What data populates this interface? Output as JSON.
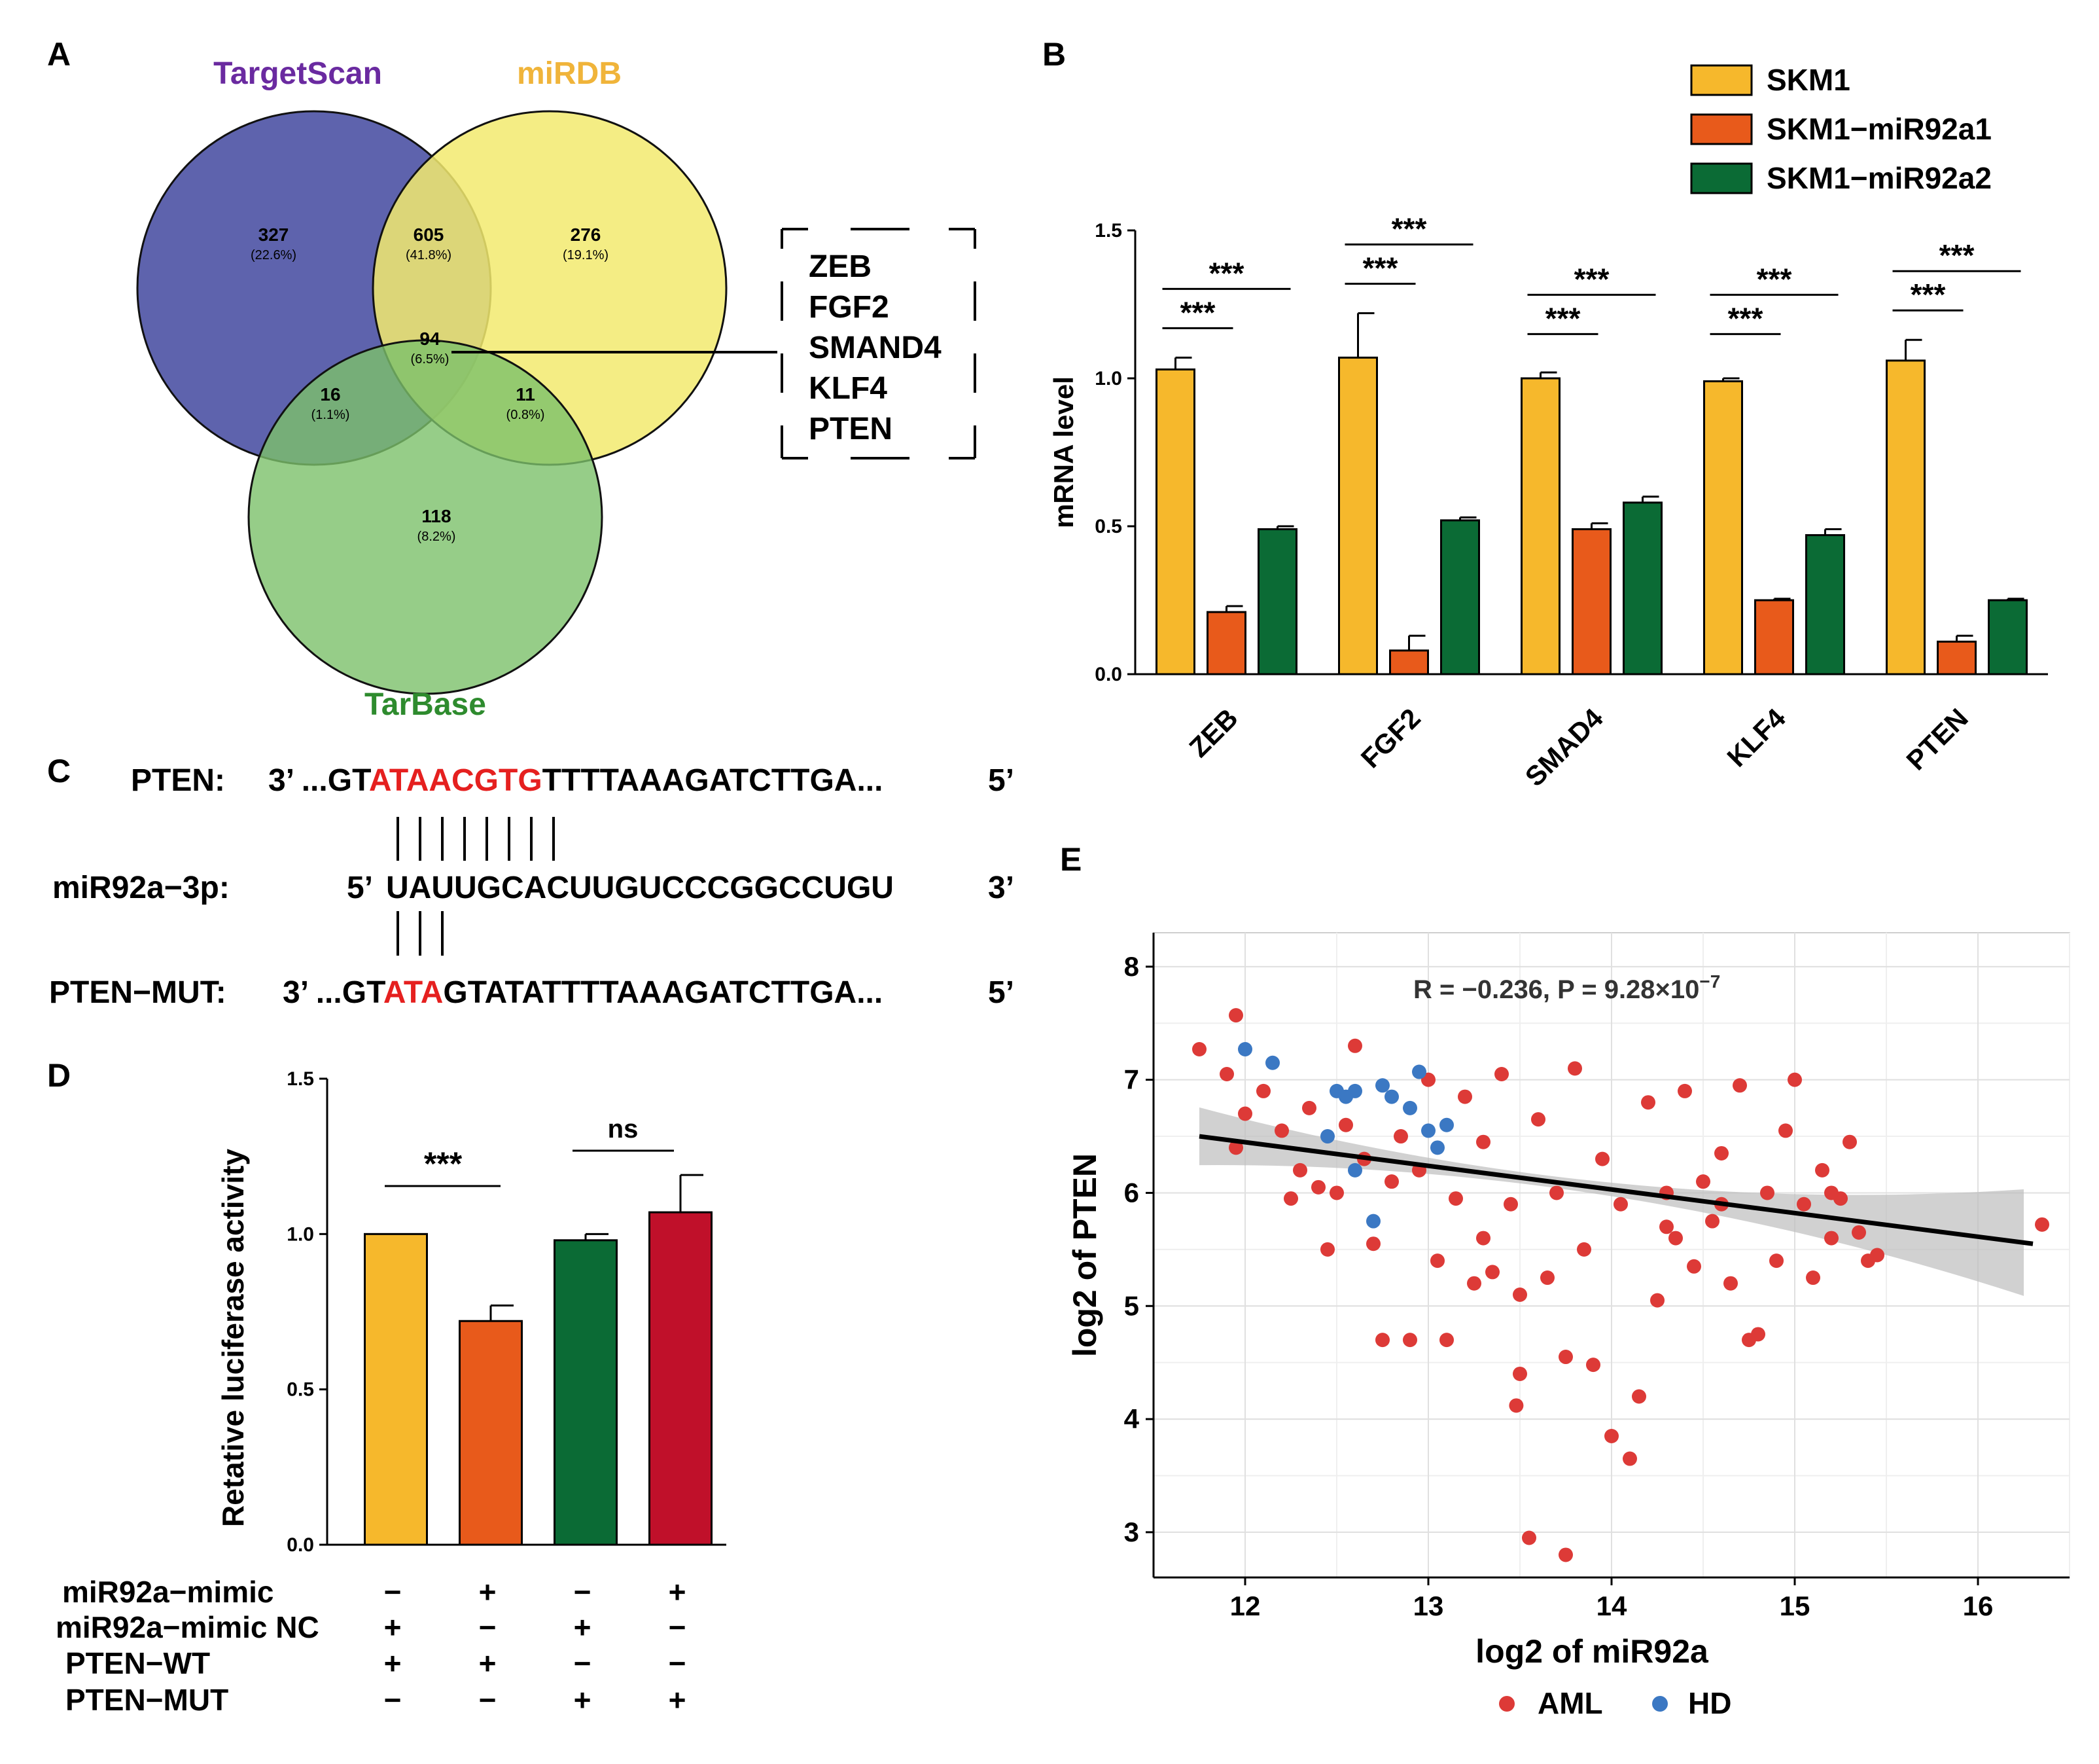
{
  "panels": {
    "A": "A",
    "B": "B",
    "C": "C",
    "D": "D",
    "E": "E"
  },
  "venn": {
    "sets": [
      "TargetScan",
      "miRDB",
      "TarBase"
    ],
    "regions": [
      {
        "count": "327",
        "pct": "(22.6%)"
      },
      {
        "count": "605",
        "pct": "(41.8%)"
      },
      {
        "count": "276",
        "pct": "(19.1%)"
      },
      {
        "count": "94",
        "pct": "(6.5%)"
      },
      {
        "count": "16",
        "pct": "(1.1%)"
      },
      {
        "count": "11",
        "pct": "(0.8%)"
      },
      {
        "count": "118",
        "pct": "(8.2%)"
      }
    ],
    "genes": [
      "ZEB",
      "FGF2",
      "SMAND4",
      "KLF4",
      "PTEN"
    ],
    "colors": {
      "TargetScan": "#5e63ad",
      "miRDB": "#f2ea6e",
      "TarBase": "#7cc16a",
      "TargetScanLabel": "#6a2aa0",
      "miRDBLabel": "#f0b43a",
      "TarBaseLabel": "#2e8b2e"
    }
  },
  "chart_data": [
    {
      "id": "B",
      "type": "bar",
      "ylabel": "mRNA level",
      "ylim": [
        0,
        1.5
      ],
      "yticks": [
        "0.0",
        "0.5",
        "1.0",
        "1.5"
      ],
      "categories": [
        "ZEB",
        "FGF2",
        "SMAD4",
        "KLF4",
        "PTEN"
      ],
      "series": [
        {
          "name": "SKM1",
          "color": "#f6b82c",
          "values": [
            1.03,
            1.07,
            1.0,
            0.99,
            1.06
          ],
          "errors": [
            0.04,
            0.15,
            0.02,
            0.01,
            0.07
          ]
        },
        {
          "name": "SKM1−miR92a1",
          "color": "#e85a1b",
          "values": [
            0.21,
            0.08,
            0.49,
            0.25,
            0.11
          ],
          "errors": [
            0.02,
            0.05,
            0.02,
            0.005,
            0.02
          ]
        },
        {
          "name": "SKM1−miR92a2",
          "color": "#0b6b35",
          "values": [
            0.49,
            0.52,
            0.58,
            0.47,
            0.25
          ],
          "errors": [
            0.01,
            0.01,
            0.02,
            0.02,
            0.005
          ]
        }
      ],
      "significance": [
        "***",
        "***",
        "***",
        "***",
        "***",
        "***",
        "***",
        "***",
        "***",
        "***"
      ]
    },
    {
      "id": "D",
      "type": "bar",
      "ylabel": "Retative luciferase activity",
      "ylim": [
        0,
        1.5
      ],
      "yticks": [
        "0.0",
        "0.5",
        "1.0",
        "1.5"
      ],
      "colors": [
        "#f6b82c",
        "#e85a1b",
        "#0b6b35",
        "#c0102a"
      ],
      "values": [
        1.0,
        0.72,
        0.98,
        1.07
      ],
      "errors": [
        0.0,
        0.05,
        0.02,
        0.12
      ],
      "significance": [
        "***",
        "ns"
      ],
      "conditions": [
        {
          "label": "miR92a−mimic",
          "signs": [
            "−",
            "+",
            "−",
            "+"
          ]
        },
        {
          "label": "miR92a−mimic NC",
          "signs": [
            "+",
            "−",
            "+",
            "−"
          ]
        },
        {
          "label": "PTEN−WT",
          "signs": [
            "+",
            "+",
            "−",
            "−"
          ]
        },
        {
          "label": "PTEN−MUT",
          "signs": [
            "−",
            "−",
            "+",
            "+"
          ]
        }
      ]
    },
    {
      "id": "E",
      "type": "scatter",
      "xlabel": "log2 of miR92a",
      "ylabel": "log2 of PTEN",
      "xlim": [
        11.5,
        16.5
      ],
      "ylim": [
        2.6,
        8.3
      ],
      "xticks": [
        "12",
        "13",
        "14",
        "15",
        "16"
      ],
      "yticks": [
        "3",
        "4",
        "5",
        "6",
        "7",
        "8"
      ],
      "annotation": "R = −0.236, P = 9.28×10",
      "annotation_exp": "−7",
      "regression": {
        "x": [
          11.75,
          16.3
        ],
        "y": [
          6.5,
          5.55
        ]
      },
      "legend": [
        "AML",
        "HD"
      ],
      "colors": {
        "AML": "#dd3a37",
        "HD": "#3b78c3"
      },
      "HD": [
        [
          12.0,
          7.27
        ],
        [
          12.15,
          7.15
        ],
        [
          12.45,
          6.5
        ],
        [
          12.5,
          6.9
        ],
        [
          12.55,
          6.85
        ],
        [
          12.6,
          6.9
        ],
        [
          12.6,
          6.2
        ],
        [
          12.7,
          5.75
        ],
        [
          12.8,
          6.85
        ],
        [
          12.9,
          6.75
        ],
        [
          12.95,
          7.07
        ],
        [
          13.0,
          6.55
        ],
        [
          13.05,
          6.4
        ],
        [
          13.1,
          6.6
        ],
        [
          12.75,
          6.95
        ]
      ],
      "AML": [
        [
          11.75,
          7.27
        ],
        [
          11.9,
          7.05
        ],
        [
          11.95,
          7.57
        ],
        [
          12.0,
          6.7
        ],
        [
          12.1,
          6.9
        ],
        [
          12.2,
          6.55
        ],
        [
          12.25,
          5.95
        ],
        [
          12.3,
          6.2
        ],
        [
          11.95,
          6.4
        ],
        [
          12.35,
          6.75
        ],
        [
          12.4,
          6.05
        ],
        [
          12.45,
          5.5
        ],
        [
          12.5,
          6.0
        ],
        [
          12.55,
          6.6
        ],
        [
          12.6,
          7.3
        ],
        [
          12.65,
          6.3
        ],
        [
          12.7,
          5.55
        ],
        [
          12.75,
          4.7
        ],
        [
          12.8,
          6.1
        ],
        [
          12.85,
          6.5
        ],
        [
          12.9,
          4.7
        ],
        [
          12.95,
          6.2
        ],
        [
          13.0,
          7.0
        ],
        [
          13.05,
          5.4
        ],
        [
          13.1,
          4.7
        ],
        [
          13.15,
          5.95
        ],
        [
          13.2,
          6.85
        ],
        [
          13.25,
          5.2
        ],
        [
          13.3,
          6.45
        ],
        [
          13.35,
          5.3
        ],
        [
          13.4,
          7.05
        ],
        [
          13.45,
          5.9
        ],
        [
          13.5,
          4.4
        ],
        [
          13.48,
          4.12
        ],
        [
          13.55,
          2.95
        ],
        [
          13.6,
          6.65
        ],
        [
          13.65,
          5.25
        ],
        [
          13.7,
          6.0
        ],
        [
          13.75,
          2.8
        ],
        [
          13.75,
          4.55
        ],
        [
          13.8,
          7.1
        ],
        [
          13.85,
          5.5
        ],
        [
          13.9,
          4.48
        ],
        [
          13.95,
          6.3
        ],
        [
          14.0,
          3.85
        ],
        [
          14.05,
          5.9
        ],
        [
          14.1,
          3.65
        ],
        [
          14.15,
          4.2
        ],
        [
          14.2,
          6.8
        ],
        [
          14.25,
          5.05
        ],
        [
          14.3,
          6.0
        ],
        [
          14.35,
          5.6
        ],
        [
          14.4,
          6.9
        ],
        [
          14.45,
          5.35
        ],
        [
          14.5,
          6.1
        ],
        [
          14.55,
          5.75
        ],
        [
          14.6,
          6.35
        ],
        [
          14.65,
          5.2
        ],
        [
          14.7,
          6.95
        ],
        [
          14.75,
          4.7
        ],
        [
          14.8,
          4.75
        ],
        [
          14.85,
          6.0
        ],
        [
          14.9,
          5.4
        ],
        [
          14.95,
          6.55
        ],
        [
          15.0,
          7.0
        ],
        [
          15.05,
          5.9
        ],
        [
          15.1,
          5.25
        ],
        [
          15.15,
          6.2
        ],
        [
          15.2,
          5.6
        ],
        [
          15.25,
          5.95
        ],
        [
          15.3,
          6.45
        ],
        [
          15.35,
          5.65
        ],
        [
          15.4,
          5.4
        ],
        [
          15.45,
          5.45
        ],
        [
          16.35,
          5.72
        ],
        [
          15.2,
          6.0
        ],
        [
          13.3,
          5.6
        ],
        [
          13.5,
          5.1
        ],
        [
          14.3,
          5.7
        ],
        [
          14.6,
          5.9
        ]
      ]
    }
  ],
  "sequences": {
    "pten_label": "PTEN:",
    "pten_prefix": "3’ ...GT",
    "pten_seed": "ATAACGTG",
    "pten_suffix": "TTTTAAAGATCTTGA...",
    "pten_end": "5’",
    "mir_label": "miR92a−3p:",
    "mir_start": "5’",
    "mir_seq": "UAUUGCACUUGUCCCGGCCUGU",
    "mir_end": "3’",
    "mut_label": "PTEN−MUT:",
    "mut_prefix": "3’ ...GT",
    "mut_seed": "ATA",
    "mut_suffix": "GTATATTTTAAAGATCTTGA...",
    "mut_end": "5’",
    "seed_color": "#e5201f"
  }
}
